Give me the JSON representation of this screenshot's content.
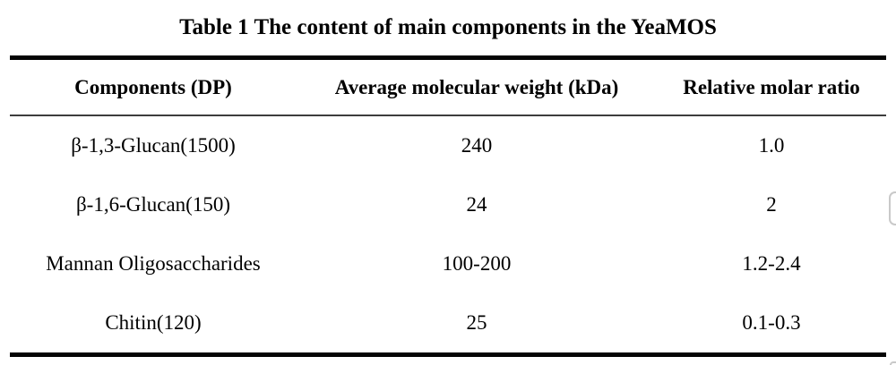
{
  "table": {
    "title": "Table 1 The content of main components in the YeaMOS",
    "columns": [
      "Components (DP)",
      "Average molecular weight (kDa)",
      "Relative molar ratio"
    ],
    "rows": [
      [
        "β-1,3-Glucan(1500)",
        "240",
        "1.0"
      ],
      [
        "β-1,6-Glucan(150)",
        "24",
        "2"
      ],
      [
        "Mannan Oligosaccharides",
        "100-200",
        "1.2-2.4"
      ],
      [
        "Chitin(120)",
        "25",
        "0.1-0.3"
      ]
    ]
  },
  "colors": {
    "background": "#ffffff",
    "text": "#000000",
    "thick_rule": "#050505",
    "thin_rule": "#3d3d3d",
    "edge_fragment_border": "#c9c9c9"
  }
}
